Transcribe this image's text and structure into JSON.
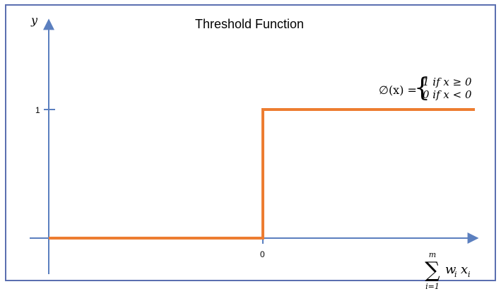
{
  "chart_data": {
    "type": "line",
    "title": "Threshold Function",
    "ylabel": "y",
    "xlabel_sum": {
      "symbol": "∑",
      "upper": "m",
      "lower": "i=1",
      "body": "w",
      "sub_i": "i",
      "body2": "x",
      "sub_i2": "i"
    },
    "y_ticks": [
      {
        "value": 1,
        "label": "1"
      }
    ],
    "x_ticks": [
      {
        "value": 0,
        "label": "0"
      }
    ],
    "xlim": [
      -1,
      1.1
    ],
    "ylim": [
      -0.2,
      1.4
    ],
    "series": [
      {
        "color": "#ed7d31",
        "points": [
          [
            -1,
            0
          ],
          [
            0,
            0
          ],
          [
            0,
            1
          ],
          [
            1.1,
            1
          ]
        ]
      }
    ],
    "annotation": {
      "lhs": "∅(x) =",
      "case1": "1 if x ≥ 0",
      "case2": "0 if x  < 0"
    },
    "colors": {
      "axis": "#5b7fbf",
      "line": "#ed7d31",
      "frame": "#5b6fb0"
    }
  }
}
